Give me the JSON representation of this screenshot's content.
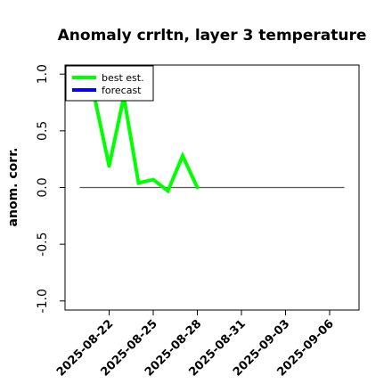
{
  "chart_data": {
    "type": "line",
    "title": "Anomaly crrltn, layer 3 temperature",
    "xlabel": "",
    "ylabel": "anom. corr.",
    "ylim": [
      -1.0,
      1.0
    ],
    "yticks": [
      "-1.0",
      "-0.5",
      "0.0",
      "0.5",
      "1.0"
    ],
    "xlim": [
      "2025-08-19",
      "2025-09-08"
    ],
    "xticks": [
      "2025-08-22",
      "2025-08-25",
      "2025-08-28",
      "2025-08-31",
      "2025-09-03",
      "2025-09-06"
    ],
    "highlight_xtick": "2025-08-28",
    "highlight_color": "#228B22",
    "zero_line": {
      "from": "2025-08-20",
      "to": "2025-09-07",
      "color": "#555555"
    },
    "grid": false,
    "legend_position": "top-left",
    "series": [
      {
        "name": "best est.",
        "color": "#00ff00",
        "points": [
          [
            "2025-08-21",
            0.8
          ],
          [
            "2025-08-22",
            0.19
          ],
          [
            "2025-08-23",
            0.8
          ],
          [
            "2025-08-24",
            0.04
          ],
          [
            "2025-08-25",
            0.07
          ],
          [
            "2025-08-26",
            -0.03
          ],
          [
            "2025-08-27",
            0.28
          ],
          [
            "2025-08-28",
            0.0
          ]
        ]
      },
      {
        "name": "forecast",
        "color": "#0000ff",
        "points": []
      }
    ]
  }
}
